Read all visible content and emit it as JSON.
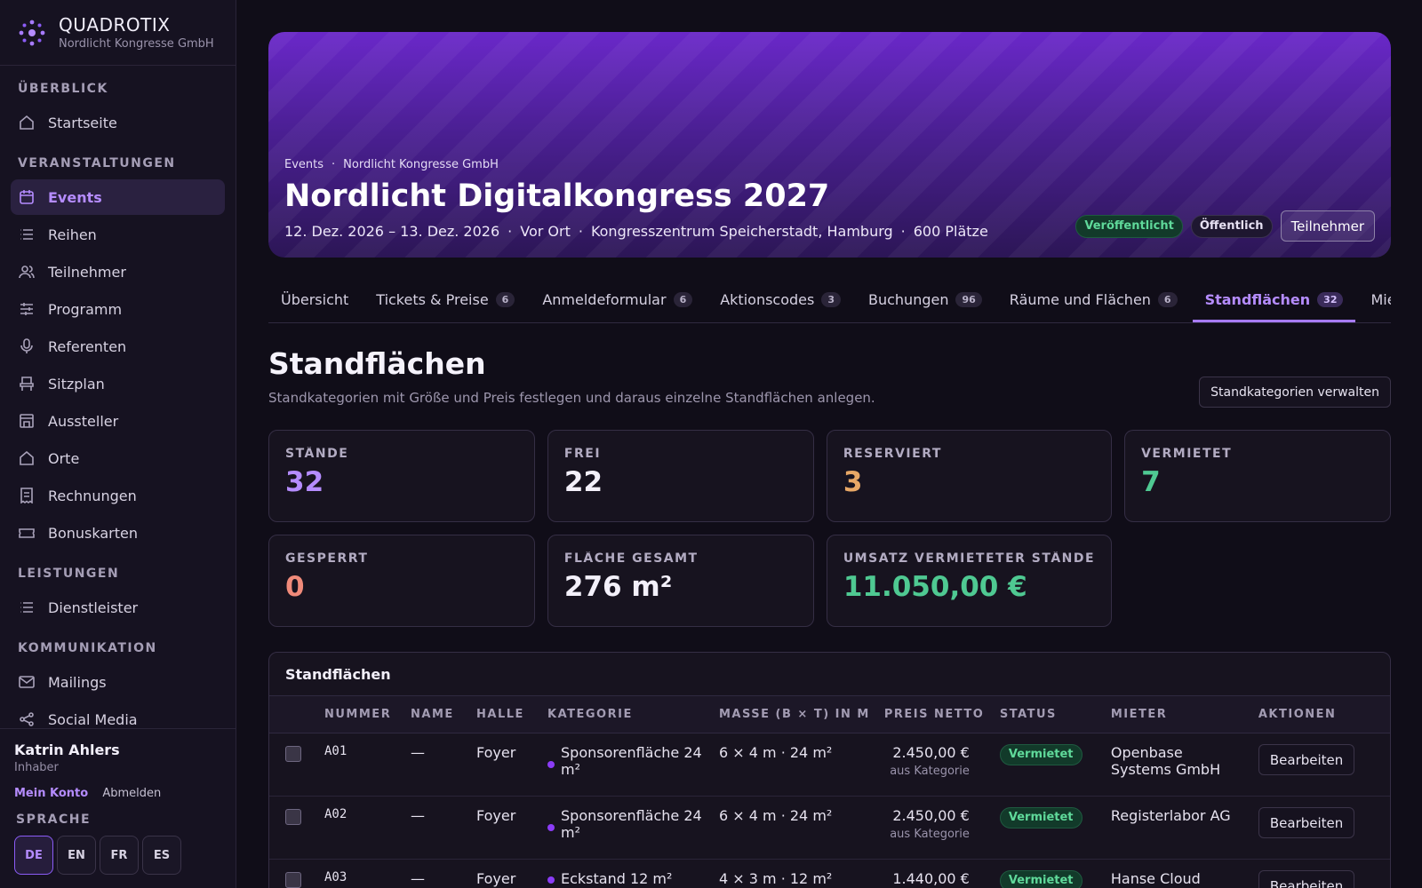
{
  "brand": {
    "name": "QUADROTIX",
    "subtitle": "Nordlicht Kongresse GmbH"
  },
  "sidebar": {
    "sections": {
      "overview": "ÜBERBLICK",
      "events": "VERANSTALTUNGEN",
      "services": "LEISTUNGEN",
      "communication": "KOMMUNIKATION"
    },
    "items": {
      "start": "Startseite",
      "events": "Events",
      "series": "Reihen",
      "participants": "Teilnehmer",
      "program": "Programm",
      "speakers": "Referenten",
      "seating": "Sitzplan",
      "exhibitors": "Aussteller",
      "venues": "Orte",
      "invoices": "Rechnungen",
      "bonus": "Bonuskarten",
      "providers": "Dienstleister",
      "mailings": "Mailings",
      "social": "Social Media"
    },
    "user": {
      "name": "Katrin Ahlers",
      "role": "Inhaber",
      "account": "Mein Konto",
      "logout": "Abmelden"
    },
    "language": {
      "title": "SPRACHE",
      "options": [
        "DE",
        "EN",
        "FR",
        "ES"
      ],
      "selected": "DE"
    }
  },
  "hero": {
    "crumb1": "Events",
    "crumb_sep": "·",
    "crumb2": "Nordlicht Kongresse GmbH",
    "title": "Nordlicht Digitalkongress 2027",
    "date": "12. Dez. 2026 – 13. Dez. 2026",
    "mode": "Vor Ort",
    "venue": "Kongresszentrum Speicherstadt, Hamburg",
    "seats": "600 Plätze",
    "meta_sep": "·",
    "badge_published": "Veröffentlicht",
    "badge_public": "Öffentlich",
    "participants_button": "Teilnehmer"
  },
  "tabs": [
    {
      "label": "Übersicht",
      "count": ""
    },
    {
      "label": "Tickets & Preise",
      "count": "6"
    },
    {
      "label": "Anmeldeformular",
      "count": "6"
    },
    {
      "label": "Aktionscodes",
      "count": "3"
    },
    {
      "label": "Buchungen",
      "count": "96"
    },
    {
      "label": "Räume und Flächen",
      "count": "6"
    },
    {
      "label": "Standflächen",
      "count": "32"
    },
    {
      "label": "Mietge",
      "count": ""
    }
  ],
  "section": {
    "title": "Standflächen",
    "description": "Standkategorien mit Größe und Preis festlegen und daraus einzelne Standflächen anlegen.",
    "manage_button": "Standkategorien verwalten"
  },
  "stats": [
    {
      "label": "STÄNDE",
      "value": "32",
      "color": "#b58cff"
    },
    {
      "label": "FREI",
      "value": "22",
      "color": "#f3f0fa"
    },
    {
      "label": "RESERVIERT",
      "value": "3",
      "color": "#e8a866"
    },
    {
      "label": "VERMIETET",
      "value": "7",
      "color": "#4fc992"
    },
    {
      "label": "GESPERRT",
      "value": "0",
      "color": "#f08a7a"
    },
    {
      "label": "FLÄCHE GESAMT",
      "value": "276 m²",
      "color": "#f3f0fa"
    },
    {
      "label": "UMSATZ VERMIETETER STÄNDE",
      "value": "11.050,00 €",
      "color": "#4fc992"
    }
  ],
  "table": {
    "title": "Standflächen",
    "headers": [
      "",
      "NUMMER",
      "NAME",
      "HALLE",
      "KATEGORIE",
      "MASSE (B × T) IN M",
      "PREIS NETTO",
      "STATUS",
      "MIETER",
      "AKTIONEN"
    ],
    "rows": [
      {
        "number": "A01",
        "name": "—",
        "hall": "Foyer",
        "category": "Sponsorenfläche 24 m²",
        "size": "6 × 4 m · 24 m²",
        "price": "2.450,00 €",
        "price_note": "aus Kategorie",
        "status": "Vermietet",
        "tenant": "Openbase Systems GmbH",
        "action": "Bearbeiten"
      },
      {
        "number": "A02",
        "name": "—",
        "hall": "Foyer",
        "category": "Sponsorenfläche 24 m²",
        "size": "6 × 4 m · 24 m²",
        "price": "2.450,00 €",
        "price_note": "aus Kategorie",
        "status": "Vermietet",
        "tenant": "Registerlabor AG",
        "action": "Bearbeiten"
      },
      {
        "number": "A03",
        "name": "—",
        "hall": "Foyer",
        "category": "Eckstand 12 m²",
        "size": "4 × 3 m · 12 m²",
        "price": "1.440,00 €",
        "price_note": "",
        "status": "Vermietet",
        "tenant": "Hanse Cloud",
        "action": "Bearbeiten"
      }
    ]
  }
}
